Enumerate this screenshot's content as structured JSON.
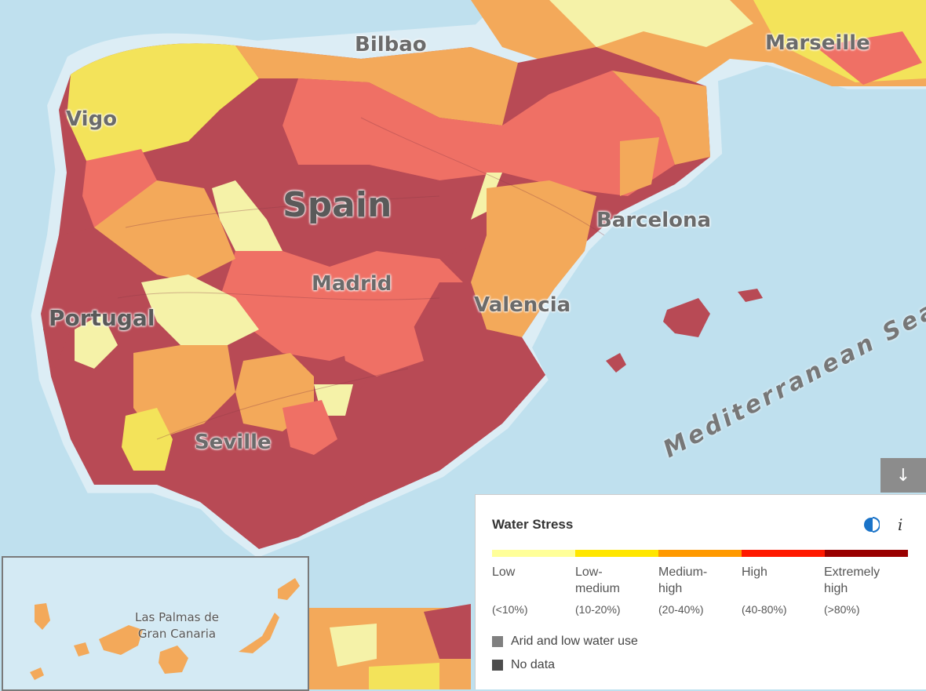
{
  "map": {
    "labels": {
      "bilbao": "Bilbao",
      "marseille": "Marseille",
      "vigo": "Vigo",
      "spain": "Spain",
      "barcelona": "Barcelona",
      "madrid": "Madrid",
      "valencia": "Valencia",
      "portugal": "Portugal",
      "seville": "Seville",
      "mediterranean": "Mediterranean Sea"
    },
    "inset": {
      "label_line1": "Las Palmas de",
      "label_line2": "Gran Canaria"
    }
  },
  "controls": {
    "download_icon": "arrow-down-icon",
    "download_glyph": "↓"
  },
  "legend": {
    "title": "Water Stress",
    "toggle_icon": "half-circle-toggle-icon",
    "info_glyph": "i",
    "categories": [
      {
        "name_line1": "Low",
        "name_line2": "",
        "range": "(<10%)",
        "color": "#ffff99"
      },
      {
        "name_line1": "Low-",
        "name_line2": "medium",
        "range": "(10-20%)",
        "color": "#ffe600"
      },
      {
        "name_line1": "Medium-",
        "name_line2": "high",
        "range": "(20-40%)",
        "color": "#ff9900"
      },
      {
        "name_line1": "High",
        "name_line2": "",
        "range": "(40-80%)",
        "color": "#ff1900"
      },
      {
        "name_line1": "Extremely",
        "name_line2": "high",
        "range": "(>80%)",
        "color": "#990000"
      }
    ],
    "extras": [
      {
        "label": "Arid and low water use",
        "color": "#808080"
      },
      {
        "label": "No data",
        "color": "#4d4d4d"
      }
    ]
  },
  "colors": {
    "sea": "#bfe0ee",
    "coast": "#dcedf5",
    "low": "#f5f2a8",
    "low_medium": "#f3e35a",
    "medium_high": "#f3a95a",
    "high": "#ef7065",
    "extremely_high": "#b84a55"
  }
}
